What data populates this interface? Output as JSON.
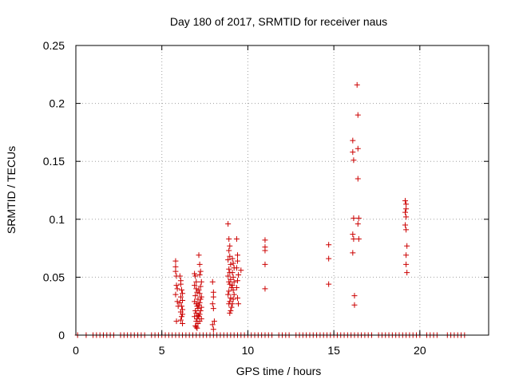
{
  "chart_data": {
    "type": "scatter",
    "title": "Day 180 of 2017, SRMTID for receiver naus",
    "xlabel": "GPS time / hours",
    "ylabel": "SRMTID / TECUs",
    "xlim": [
      0,
      24
    ],
    "ylim": [
      0,
      0.25
    ],
    "xticks": [
      0,
      5,
      10,
      15,
      20
    ],
    "yticks": [
      0,
      0.05,
      0.1,
      0.15,
      0.2,
      0.25
    ],
    "xtick_labels": [
      "0",
      "5",
      "10",
      "15",
      "20"
    ],
    "ytick_labels": [
      "0",
      "0.05",
      "0.1",
      "0.15",
      "0.2",
      "0.25"
    ],
    "grid": true,
    "legend": "none",
    "marker": "+",
    "color": "#cc0000",
    "series": [
      {
        "name": "SRMTID",
        "x": [
          0.1,
          0.6,
          1.0,
          1.2,
          1.4,
          1.6,
          1.8,
          2.0,
          2.2,
          2.6,
          2.8,
          3.0,
          3.2,
          3.4,
          3.6,
          3.8,
          4.0,
          4.4,
          4.6,
          4.8,
          5.0,
          5.2,
          5.4,
          5.6,
          5.8,
          6.0,
          6.2,
          6.4,
          6.6,
          6.8,
          7.0,
          7.2,
          7.4,
          7.6,
          7.8,
          8.0,
          8.2,
          8.4,
          8.6,
          8.8,
          9.0,
          9.2,
          9.4,
          9.6,
          9.8,
          10.0,
          10.2,
          10.4,
          10.6,
          10.8,
          11.0,
          11.2,
          11.4,
          11.8,
          12.0,
          12.2,
          12.4,
          12.8,
          13.0,
          13.2,
          13.4,
          13.6,
          13.8,
          14.0,
          14.2,
          14.4,
          14.6,
          14.8,
          15.0,
          15.2,
          15.4,
          15.6,
          15.8,
          16.0,
          16.2,
          16.4,
          16.6,
          16.8,
          17.0,
          17.2,
          17.6,
          17.8,
          18.0,
          18.2,
          18.4,
          18.6,
          18.8,
          19.0,
          19.2,
          19.4,
          19.6,
          19.8,
          20.0,
          20.4,
          20.6,
          20.8,
          21.0,
          21.6,
          21.8,
          22.0,
          22.2,
          22.4,
          22.6,
          5.8,
          5.8,
          5.8,
          5.85,
          5.85,
          5.9,
          5.8,
          5.9,
          5.95,
          5.85,
          6.05,
          6.1,
          6.1,
          6.15,
          6.2,
          6.1,
          6.2,
          6.05,
          6.15,
          6.2,
          6.1,
          6.2,
          6.15,
          6.1,
          6.2,
          6.9,
          6.95,
          7.0,
          6.9,
          7.0,
          7.05,
          6.95,
          7.1,
          6.9,
          7.0,
          7.05,
          7.1,
          6.95,
          7.0,
          7.1,
          6.9,
          7.05,
          7.0,
          7.1,
          6.95,
          7.0,
          7.05,
          7.15,
          7.2,
          7.25,
          7.2,
          7.3,
          7.25,
          7.15,
          7.2,
          7.3,
          7.25,
          7.2,
          7.15,
          7.3,
          7.25,
          7.2,
          7.15,
          7.3,
          7.2,
          7.95,
          8.0,
          8.0,
          7.95,
          8.0,
          8.05,
          7.95,
          8.0,
          8.85,
          8.9,
          8.95,
          8.9,
          8.95,
          8.85,
          9.0,
          8.9,
          8.95,
          8.85,
          9.0,
          8.9,
          8.95,
          9.05,
          8.9,
          8.85,
          9.0,
          8.95,
          8.9,
          9.05,
          9.0,
          8.95,
          9.1,
          9.15,
          9.2,
          9.1,
          9.15,
          9.2,
          9.1,
          9.15,
          9.2,
          9.15,
          9.1,
          9.35,
          9.4,
          9.4,
          9.35,
          9.45,
          9.4,
          9.35,
          9.4,
          9.45,
          9.6,
          11.0,
          11.0,
          11.0,
          11.0,
          11.0,
          14.7,
          14.7,
          14.7,
          16.1,
          16.1,
          16.15,
          16.15,
          16.1,
          16.15,
          16.1,
          16.2,
          16.2,
          16.35,
          16.4,
          16.4,
          16.4,
          16.45,
          16.4,
          16.45,
          19.15,
          19.2,
          19.2,
          19.15,
          19.2,
          19.15,
          19.2,
          19.25,
          19.2,
          19.2,
          19.25
        ],
        "y": [
          0,
          0,
          0,
          0,
          0,
          0,
          0,
          0,
          0,
          0,
          0,
          0,
          0,
          0,
          0,
          0,
          0,
          0,
          0,
          0,
          0,
          0,
          0,
          0,
          0,
          0,
          0,
          0,
          0,
          0,
          0,
          0,
          0,
          0,
          0,
          0,
          0,
          0,
          0,
          0,
          0,
          0,
          0,
          0,
          0,
          0,
          0,
          0,
          0,
          0,
          0,
          0,
          0,
          0,
          0,
          0,
          0,
          0,
          0,
          0,
          0,
          0,
          0,
          0,
          0,
          0,
          0,
          0,
          0,
          0,
          0,
          0,
          0,
          0,
          0,
          0,
          0,
          0,
          0,
          0,
          0,
          0,
          0,
          0,
          0,
          0,
          0,
          0,
          0,
          0,
          0,
          0,
          0,
          0,
          0,
          0,
          0,
          0,
          0,
          0,
          0,
          0,
          0,
          0.064,
          0.059,
          0.055,
          0.051,
          0.043,
          0.04,
          0.035,
          0.029,
          0.025,
          0.012,
          0.051,
          0.047,
          0.044,
          0.039,
          0.036,
          0.033,
          0.03,
          0.028,
          0.025,
          0.022,
          0.02,
          0.018,
          0.016,
          0.013,
          0.01,
          0.053,
          0.051,
          0.046,
          0.043,
          0.04,
          0.037,
          0.034,
          0.031,
          0.029,
          0.027,
          0.025,
          0.023,
          0.021,
          0.019,
          0.017,
          0.016,
          0.014,
          0.012,
          0.01,
          0.008,
          0.007,
          0.006,
          0.069,
          0.061,
          0.055,
          0.052,
          0.046,
          0.042,
          0.039,
          0.036,
          0.033,
          0.031,
          0.028,
          0.026,
          0.024,
          0.021,
          0.018,
          0.016,
          0.014,
          0.012,
          0.046,
          0.037,
          0.033,
          0.027,
          0.023,
          0.012,
          0.009,
          0.005,
          0.096,
          0.083,
          0.077,
          0.073,
          0.068,
          0.065,
          0.061,
          0.057,
          0.054,
          0.051,
          0.048,
          0.046,
          0.044,
          0.041,
          0.038,
          0.035,
          0.032,
          0.029,
          0.027,
          0.024,
          0.021,
          0.019,
          0.066,
          0.062,
          0.058,
          0.054,
          0.05,
          0.046,
          0.043,
          0.039,
          0.035,
          0.031,
          0.027,
          0.083,
          0.069,
          0.064,
          0.058,
          0.052,
          0.047,
          0.041,
          0.032,
          0.027,
          0.056,
          0.082,
          0.076,
          0.073,
          0.061,
          0.04,
          0.078,
          0.066,
          0.044,
          0.168,
          0.158,
          0.151,
          0.101,
          0.087,
          0.083,
          0.071,
          0.034,
          0.026,
          0.216,
          0.19,
          0.161,
          0.135,
          0.101,
          0.096,
          0.083,
          0.116,
          0.113,
          0.109,
          0.106,
          0.102,
          0.095,
          0.091,
          0.077,
          0.069,
          0.061,
          0.054
        ]
      }
    ]
  }
}
